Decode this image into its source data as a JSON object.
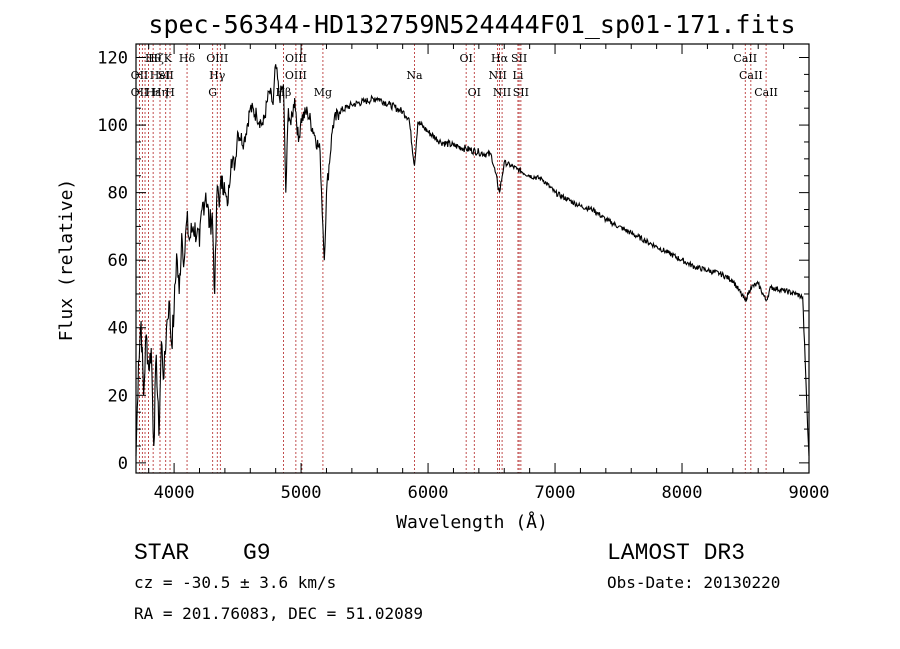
{
  "colors": {
    "axis": "#000000",
    "spectrum": "#000000",
    "line_marker": "#b22222",
    "background": "#ffffff"
  },
  "chart_data": {
    "type": "line",
    "title": "spec-56344-HD132759N524444F01_sp01-171.fits",
    "xlabel": "Wavelength (Å)",
    "ylabel": "Flux (relative)",
    "xlim": [
      3700,
      9000
    ],
    "ylim": [
      -3,
      124
    ],
    "xticks": [
      4000,
      5000,
      6000,
      7000,
      8000,
      9000
    ],
    "yticks": [
      0,
      20,
      40,
      60,
      80,
      100,
      120
    ],
    "series": [
      {
        "name": "spectrum",
        "x": [
          3700,
          3720,
          3740,
          3760,
          3780,
          3800,
          3820,
          3840,
          3860,
          3880,
          3900,
          3920,
          3940,
          3960,
          3980,
          4000,
          4020,
          4040,
          4060,
          4080,
          4100,
          4120,
          4150,
          4180,
          4200,
          4220,
          4250,
          4280,
          4300,
          4320,
          4340,
          4360,
          4380,
          4400,
          4420,
          4450,
          4480,
          4500,
          4550,
          4600,
          4650,
          4700,
          4750,
          4780,
          4800,
          4830,
          4861,
          4880,
          4900,
          4920,
          4950,
          4980,
          5000,
          5050,
          5100,
          5150,
          5172,
          5183,
          5200,
          5250,
          5300,
          5400,
          5500,
          5600,
          5700,
          5800,
          5850,
          5893,
          5920,
          6000,
          6100,
          6200,
          6300,
          6400,
          6500,
          6563,
          6600,
          6700,
          6800,
          6900,
          7000,
          7100,
          7200,
          7300,
          7400,
          7500,
          7600,
          7700,
          7800,
          7900,
          8000,
          8100,
          8200,
          8300,
          8400,
          8498,
          8542,
          8600,
          8662,
          8700,
          8800,
          8900,
          8950,
          8970,
          8990,
          9000
        ],
        "y": [
          2,
          30,
          42,
          20,
          38,
          28,
          34,
          5,
          32,
          8,
          36,
          25,
          40,
          48,
          35,
          45,
          62,
          50,
          68,
          60,
          72,
          66,
          70,
          68,
          64,
          75,
          80,
          70,
          74,
          50,
          82,
          78,
          85,
          80,
          76,
          90,
          88,
          98,
          95,
          105,
          103,
          100,
          110,
          106,
          118,
          108,
          112,
          80,
          105,
          100,
          108,
          95,
          102,
          104,
          98,
          92,
          70,
          60,
          80,
          100,
          104,
          106,
          107,
          108,
          106,
          104,
          102,
          88,
          101,
          98,
          95,
          94,
          93,
          92,
          91,
          80,
          89,
          87,
          85,
          84,
          80,
          78,
          76,
          75,
          72,
          70,
          68,
          66,
          64,
          62,
          60,
          58,
          57,
          56,
          54,
          48,
          52,
          53,
          48,
          52,
          51,
          50,
          49,
          30,
          10,
          2
        ]
      }
    ],
    "spectral_lines": [
      {
        "wavelength": 3835,
        "label": "Hθ",
        "row": 0
      },
      {
        "wavelength": 3890,
        "label": "HζK",
        "row": 0
      },
      {
        "wavelength": 4102,
        "label": "Hδ",
        "row": 0
      },
      {
        "wavelength": 4340,
        "label": "OIII",
        "row": 0
      },
      {
        "wavelength": 4960,
        "label": "OIII",
        "row": 0
      },
      {
        "wavelength": 6300,
        "label": "OI",
        "row": 0
      },
      {
        "wavelength": 6563,
        "label": "Hα",
        "row": 0
      },
      {
        "wavelength": 6717,
        "label": "SII",
        "row": 0
      },
      {
        "wavelength": 8498,
        "label": "CaII",
        "row": 0
      },
      {
        "wavelength": 3727,
        "label": "OII",
        "row": 1
      },
      {
        "wavelength": 3889,
        "label": "HeI",
        "row": 1
      },
      {
        "wavelength": 3934,
        "label": "SII",
        "row": 1
      },
      {
        "wavelength": 4340,
        "label": "Hγ",
        "row": 1
      },
      {
        "wavelength": 4959,
        "label": "OIII",
        "row": 1
      },
      {
        "wavelength": 5893,
        "label": "Na",
        "row": 1
      },
      {
        "wavelength": 6548,
        "label": "NII",
        "row": 1
      },
      {
        "wavelength": 6708,
        "label": "Li",
        "row": 1
      },
      {
        "wavelength": 8542,
        "label": "CaII",
        "row": 1
      },
      {
        "wavelength": 3727,
        "label": "OII",
        "row": 2
      },
      {
        "wavelength": 3835,
        "label": "Hε",
        "row": 2
      },
      {
        "wavelength": 3889,
        "label": "Hη",
        "row": 2
      },
      {
        "wavelength": 3968,
        "label": "H",
        "row": 2
      },
      {
        "wavelength": 4304,
        "label": "G",
        "row": 2
      },
      {
        "wavelength": 4861,
        "label": "Hβ",
        "row": 2
      },
      {
        "wavelength": 5172,
        "label": "Mg",
        "row": 2
      },
      {
        "wavelength": 6364,
        "label": "OI",
        "row": 2
      },
      {
        "wavelength": 6583,
        "label": "NII",
        "row": 2
      },
      {
        "wavelength": 6731,
        "label": "SII",
        "row": 2
      },
      {
        "wavelength": 8662,
        "label": "CaII",
        "row": 2
      }
    ],
    "line_marker_wavelengths": [
      3727,
      3750,
      3771,
      3798,
      3835,
      3889,
      3934,
      3968,
      4102,
      4304,
      4340,
      4364,
      4861,
      4959,
      5007,
      5172,
      5893,
      6300,
      6364,
      6548,
      6563,
      6583,
      6708,
      6717,
      6731,
      8498,
      8542,
      8662
    ]
  },
  "info": {
    "object_class": "STAR",
    "subclass": "G9",
    "survey": "LAMOST DR3",
    "cz": "cz = -30.5 ± 3.6 km/s",
    "obs_date": "Obs-Date: 20130220",
    "coords": "RA = 201.76083, DEC =  51.02089"
  }
}
